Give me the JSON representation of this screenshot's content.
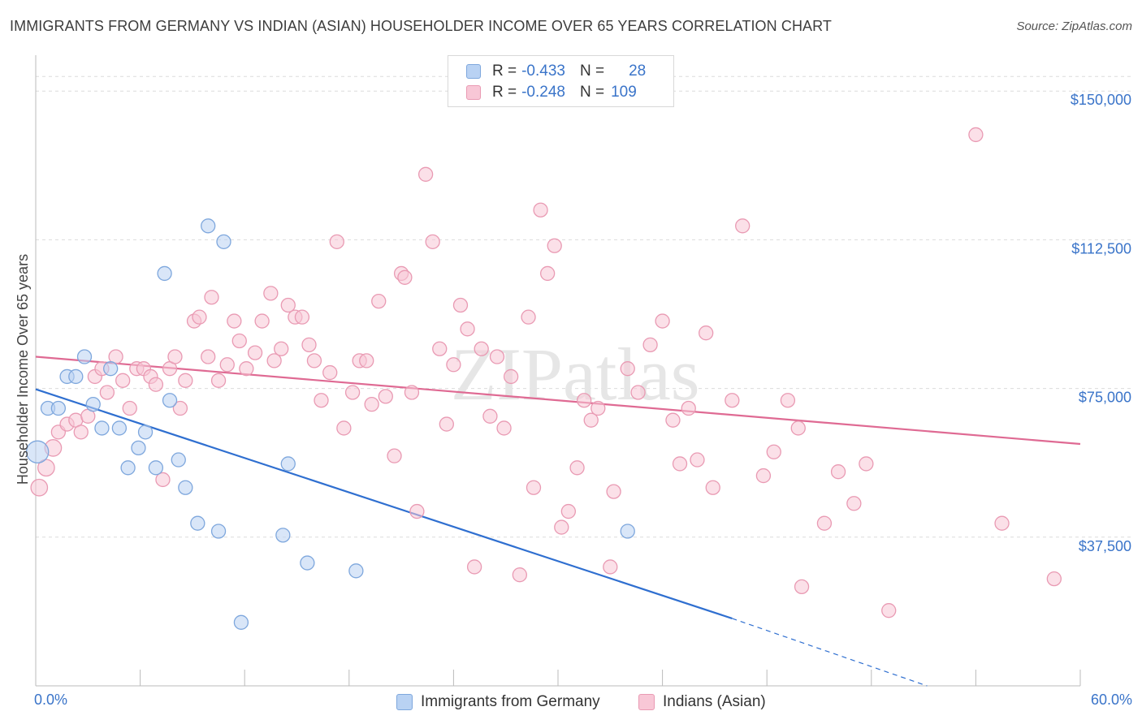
{
  "title": "IMMIGRANTS FROM GERMANY VS INDIAN (ASIAN) HOUSEHOLDER INCOME OVER 65 YEARS CORRELATION CHART",
  "source": "Source: ZipAtlas.com",
  "watermark": "ZIPatlas",
  "legend": {
    "rows": [
      {
        "r_label": "R =",
        "r_value": "-0.433",
        "n_label": "N =",
        "n_value": "28"
      },
      {
        "r_label": "R =",
        "r_value": "-0.248",
        "n_label": "N =",
        "n_value": "109"
      }
    ]
  },
  "colors": {
    "germany_fill": "#b9d2f3",
    "germany_stroke": "#7ea7dd",
    "germany_line": "#2f6fd0",
    "indian_fill": "#f8c7d6",
    "indian_stroke": "#e99ab3",
    "indian_line": "#df6a93",
    "axis_label": "#3a74c9",
    "grid": "#dcdcdc"
  },
  "chart_data": {
    "type": "scatter",
    "title": "IMMIGRANTS FROM GERMANY VS INDIAN (ASIAN) HOUSEHOLDER INCOME OVER 65 YEARS CORRELATION CHART",
    "xlabel": "",
    "ylabel": "Householder Income Over 65 years",
    "xlim": [
      0,
      60
    ],
    "ylim": [
      0,
      157000
    ],
    "x_tick_labels": [
      "0.0%",
      "60.0%"
    ],
    "y_ticks": [
      37500,
      75000,
      112500,
      150000
    ],
    "y_tick_labels": [
      "$37,500",
      "$75,000",
      "$112,500",
      "$150,000"
    ],
    "grid": true,
    "legend_position": "bottom-center",
    "series": [
      {
        "name": "Immigrants from Germany",
        "points": [
          [
            0.1,
            59000,
            1.6
          ],
          [
            0.7,
            70000,
            1
          ],
          [
            1.3,
            70000,
            1
          ],
          [
            1.8,
            78000,
            1
          ],
          [
            2.3,
            78000,
            1
          ],
          [
            2.8,
            83000,
            1
          ],
          [
            3.3,
            71000,
            1
          ],
          [
            3.8,
            65000,
            1
          ],
          [
            4.3,
            80000,
            1
          ],
          [
            4.8,
            65000,
            1
          ],
          [
            5.3,
            55000,
            1
          ],
          [
            5.9,
            60000,
            1
          ],
          [
            6.3,
            64000,
            1
          ],
          [
            6.9,
            55000,
            1
          ],
          [
            7.4,
            104000,
            1
          ],
          [
            7.7,
            72000,
            1
          ],
          [
            8.2,
            57000,
            1
          ],
          [
            8.6,
            50000,
            1
          ],
          [
            9.3,
            41000,
            1
          ],
          [
            9.9,
            116000,
            1
          ],
          [
            10.5,
            39000,
            1
          ],
          [
            10.8,
            112000,
            1
          ],
          [
            11.8,
            16000,
            1
          ],
          [
            14.2,
            38000,
            1
          ],
          [
            14.5,
            56000,
            1
          ],
          [
            15.6,
            31000,
            1
          ],
          [
            18.4,
            29000,
            1
          ],
          [
            34.0,
            39000,
            1
          ]
        ]
      },
      {
        "name": "Indians (Asian)",
        "points": [
          [
            0.2,
            50000,
            1.2
          ],
          [
            0.6,
            55000,
            1.2
          ],
          [
            1.0,
            60000,
            1.2
          ],
          [
            1.3,
            64000,
            1
          ],
          [
            1.8,
            66000,
            1
          ],
          [
            2.3,
            67000,
            1
          ],
          [
            2.6,
            64000,
            1
          ],
          [
            3.0,
            68000,
            1
          ],
          [
            3.4,
            78000,
            1
          ],
          [
            3.8,
            80000,
            1
          ],
          [
            4.1,
            74000,
            1
          ],
          [
            4.6,
            83000,
            1
          ],
          [
            5.0,
            77000,
            1
          ],
          [
            5.4,
            70000,
            1
          ],
          [
            5.8,
            80000,
            1
          ],
          [
            6.2,
            80000,
            1
          ],
          [
            6.6,
            78000,
            1
          ],
          [
            6.9,
            76000,
            1
          ],
          [
            7.3,
            52000,
            1
          ],
          [
            7.7,
            80000,
            1
          ],
          [
            8.0,
            83000,
            1
          ],
          [
            8.3,
            70000,
            1
          ],
          [
            8.6,
            77000,
            1
          ],
          [
            9.1,
            92000,
            1
          ],
          [
            9.4,
            93000,
            1
          ],
          [
            9.9,
            83000,
            1
          ],
          [
            10.1,
            98000,
            1
          ],
          [
            10.5,
            77000,
            1
          ],
          [
            11.0,
            81000,
            1
          ],
          [
            11.4,
            92000,
            1
          ],
          [
            11.7,
            87000,
            1
          ],
          [
            12.1,
            80000,
            1
          ],
          [
            12.6,
            84000,
            1
          ],
          [
            13.0,
            92000,
            1
          ],
          [
            13.5,
            99000,
            1
          ],
          [
            13.7,
            82000,
            1
          ],
          [
            14.1,
            85000,
            1
          ],
          [
            14.5,
            96000,
            1
          ],
          [
            14.9,
            93000,
            1
          ],
          [
            15.3,
            93000,
            1
          ],
          [
            15.7,
            86000,
            1
          ],
          [
            16.0,
            82000,
            1
          ],
          [
            16.4,
            72000,
            1
          ],
          [
            16.9,
            79000,
            1
          ],
          [
            17.3,
            112000,
            1
          ],
          [
            17.7,
            65000,
            1
          ],
          [
            18.2,
            74000,
            1
          ],
          [
            18.6,
            82000,
            1
          ],
          [
            19.0,
            82000,
            1
          ],
          [
            19.3,
            71000,
            1
          ],
          [
            19.7,
            97000,
            1
          ],
          [
            20.1,
            73000,
            1
          ],
          [
            20.6,
            58000,
            1
          ],
          [
            21.0,
            104000,
            1
          ],
          [
            21.2,
            103000,
            1
          ],
          [
            21.6,
            74000,
            1
          ],
          [
            21.9,
            44000,
            1
          ],
          [
            22.4,
            129000,
            1
          ],
          [
            22.8,
            112000,
            1
          ],
          [
            23.2,
            85000,
            1
          ],
          [
            23.6,
            66000,
            1
          ],
          [
            24.0,
            81000,
            1
          ],
          [
            24.4,
            96000,
            1
          ],
          [
            24.8,
            90000,
            1
          ],
          [
            25.2,
            30000,
            1
          ],
          [
            25.6,
            85000,
            1
          ],
          [
            26.1,
            68000,
            1
          ],
          [
            26.5,
            83000,
            1
          ],
          [
            26.9,
            65000,
            1
          ],
          [
            27.3,
            78000,
            1
          ],
          [
            27.8,
            28000,
            1
          ],
          [
            28.3,
            93000,
            1
          ],
          [
            28.6,
            50000,
            1
          ],
          [
            29.0,
            120000,
            1
          ],
          [
            29.4,
            104000,
            1
          ],
          [
            29.8,
            111000,
            1
          ],
          [
            30.2,
            40000,
            1
          ],
          [
            30.6,
            44000,
            1
          ],
          [
            31.1,
            55000,
            1
          ],
          [
            31.5,
            72000,
            1
          ],
          [
            31.9,
            67000,
            1
          ],
          [
            32.3,
            70000,
            1
          ],
          [
            33.2,
            49000,
            1
          ],
          [
            34.0,
            80000,
            1
          ],
          [
            34.6,
            74000,
            1
          ],
          [
            35.3,
            86000,
            1
          ],
          [
            36.0,
            92000,
            1
          ],
          [
            36.6,
            67000,
            1
          ],
          [
            37.0,
            56000,
            1
          ],
          [
            37.5,
            70000,
            1
          ],
          [
            38.0,
            57000,
            1
          ],
          [
            38.5,
            89000,
            1
          ],
          [
            38.9,
            50000,
            1
          ],
          [
            40.0,
            72000,
            1
          ],
          [
            40.6,
            116000,
            1
          ],
          [
            41.8,
            53000,
            1
          ],
          [
            42.4,
            59000,
            1
          ],
          [
            43.2,
            72000,
            1
          ],
          [
            43.8,
            65000,
            1
          ],
          [
            44.0,
            25000,
            1
          ],
          [
            45.3,
            41000,
            1
          ],
          [
            46.1,
            54000,
            1
          ],
          [
            47.0,
            46000,
            1
          ],
          [
            47.7,
            56000,
            1
          ],
          [
            49.0,
            19000,
            1
          ],
          [
            55.5,
            41000,
            1
          ],
          [
            54.0,
            139000,
            1
          ],
          [
            58.5,
            27000,
            1
          ],
          [
            33.0,
            30000,
            1
          ]
        ]
      }
    ],
    "trend_lines": [
      {
        "name": "Immigrants from Germany",
        "x0": 0,
        "y0": 74800,
        "x1": 40,
        "y1": 17000,
        "dashed_to_x": 51.2,
        "dashed_to_y": 0
      },
      {
        "name": "Indians (Asian)",
        "x0": 0,
        "y0": 83000,
        "x1": 60,
        "y1": 61000
      }
    ]
  },
  "bottom_legend": {
    "items": [
      {
        "label": "Immigrants from Germany"
      },
      {
        "label": "Indians (Asian)"
      }
    ]
  }
}
